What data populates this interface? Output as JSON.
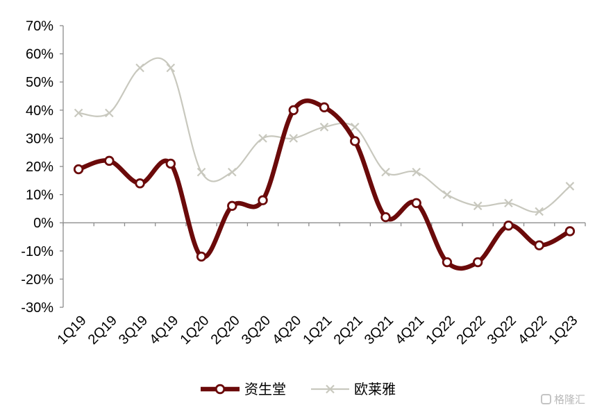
{
  "chart_data": {
    "type": "line",
    "categories": [
      "1Q19",
      "2Q19",
      "3Q19",
      "4Q19",
      "1Q20",
      "2Q20",
      "3Q20",
      "4Q20",
      "1Q21",
      "2Q21",
      "3Q21",
      "4Q21",
      "1Q22",
      "2Q22",
      "3Q22",
      "4Q22",
      "1Q23"
    ],
    "series": [
      {
        "name": "资生堂",
        "color": "#6b0a0a",
        "marker": "circle",
        "values": [
          19,
          22,
          14,
          21,
          -12,
          6,
          8,
          40,
          41,
          29,
          2,
          7,
          -14,
          -14,
          -1,
          -8,
          -3
        ]
      },
      {
        "name": "欧莱雅",
        "color": "#c8c8be",
        "marker": "x",
        "values": [
          39,
          39,
          55,
          55,
          18,
          18,
          30,
          30,
          34,
          34,
          18,
          18,
          10,
          6,
          7,
          4,
          13
        ]
      }
    ],
    "ylim": [
      -30,
      70
    ],
    "yticks": [
      -30,
      -20,
      -10,
      0,
      10,
      20,
      30,
      40,
      50,
      60,
      70
    ],
    "ytick_labels": [
      "-30%",
      "-20%",
      "-10%",
      "0%",
      "10%",
      "20%",
      "30%",
      "40%",
      "50%",
      "60%",
      "70%"
    ],
    "legend_position": "bottom",
    "grid": false
  },
  "watermark": {
    "text": "格隆汇",
    "icon": "glh-logo-icon"
  }
}
